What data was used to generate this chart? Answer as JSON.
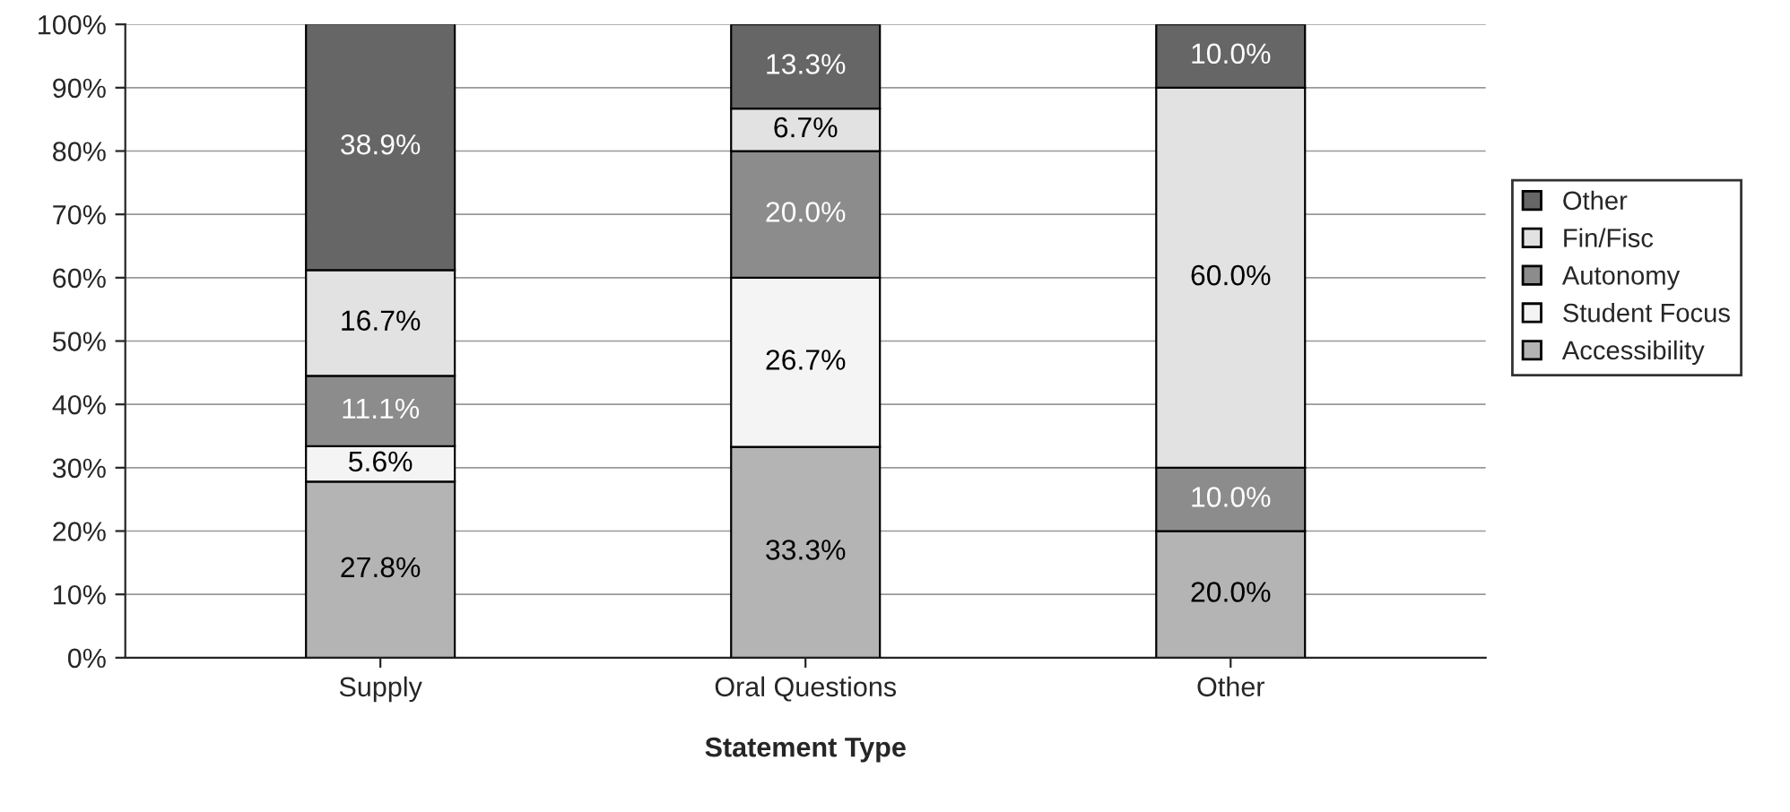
{
  "chart_data": {
    "type": "bar",
    "stacked": true,
    "xlabel": "Statement Type",
    "categories": [
      "Supply",
      "Oral Questions",
      "Other"
    ],
    "series": [
      {
        "name": "Accessibility",
        "color": "#b4b4b4",
        "values": [
          27.8,
          33.3,
          20.0
        ],
        "value_labels": [
          "27.8%",
          "33.3%",
          "20.0%"
        ]
      },
      {
        "name": "Student Focus",
        "color": "#f4f4f4",
        "values": [
          5.6,
          26.7,
          null
        ],
        "value_labels": [
          "5.6%",
          "26.7%",
          null
        ]
      },
      {
        "name": "Autonomy",
        "color": "#8c8c8c",
        "values": [
          11.1,
          20.0,
          10.0
        ],
        "value_labels": [
          "11.1%",
          "20.0%",
          "10.0%"
        ]
      },
      {
        "name": "Fin/Fisc",
        "color": "#e2e2e2",
        "values": [
          16.7,
          6.7,
          60.0
        ],
        "value_labels": [
          "16.7%",
          "6.7%",
          "60.0%"
        ]
      },
      {
        "name": "Other",
        "color": "#666666",
        "values": [
          38.9,
          13.3,
          10.0
        ],
        "value_labels": [
          "38.9%",
          "13.3%",
          "10.0%"
        ]
      }
    ],
    "ylim": [
      0,
      100
    ],
    "yticks": [
      {
        "value": 0,
        "label": "0%"
      },
      {
        "value": 10,
        "label": "10%"
      },
      {
        "value": 20,
        "label": "20%"
      },
      {
        "value": 30,
        "label": "30%"
      },
      {
        "value": 40,
        "label": "40%"
      },
      {
        "value": 50,
        "label": "50%"
      },
      {
        "value": 60,
        "label": "60%"
      },
      {
        "value": 70,
        "label": "70%"
      },
      {
        "value": 80,
        "label": "80%"
      },
      {
        "value": 90,
        "label": "90%"
      },
      {
        "value": 100,
        "label": "100%"
      }
    ],
    "grid": "y",
    "legend": "right"
  }
}
